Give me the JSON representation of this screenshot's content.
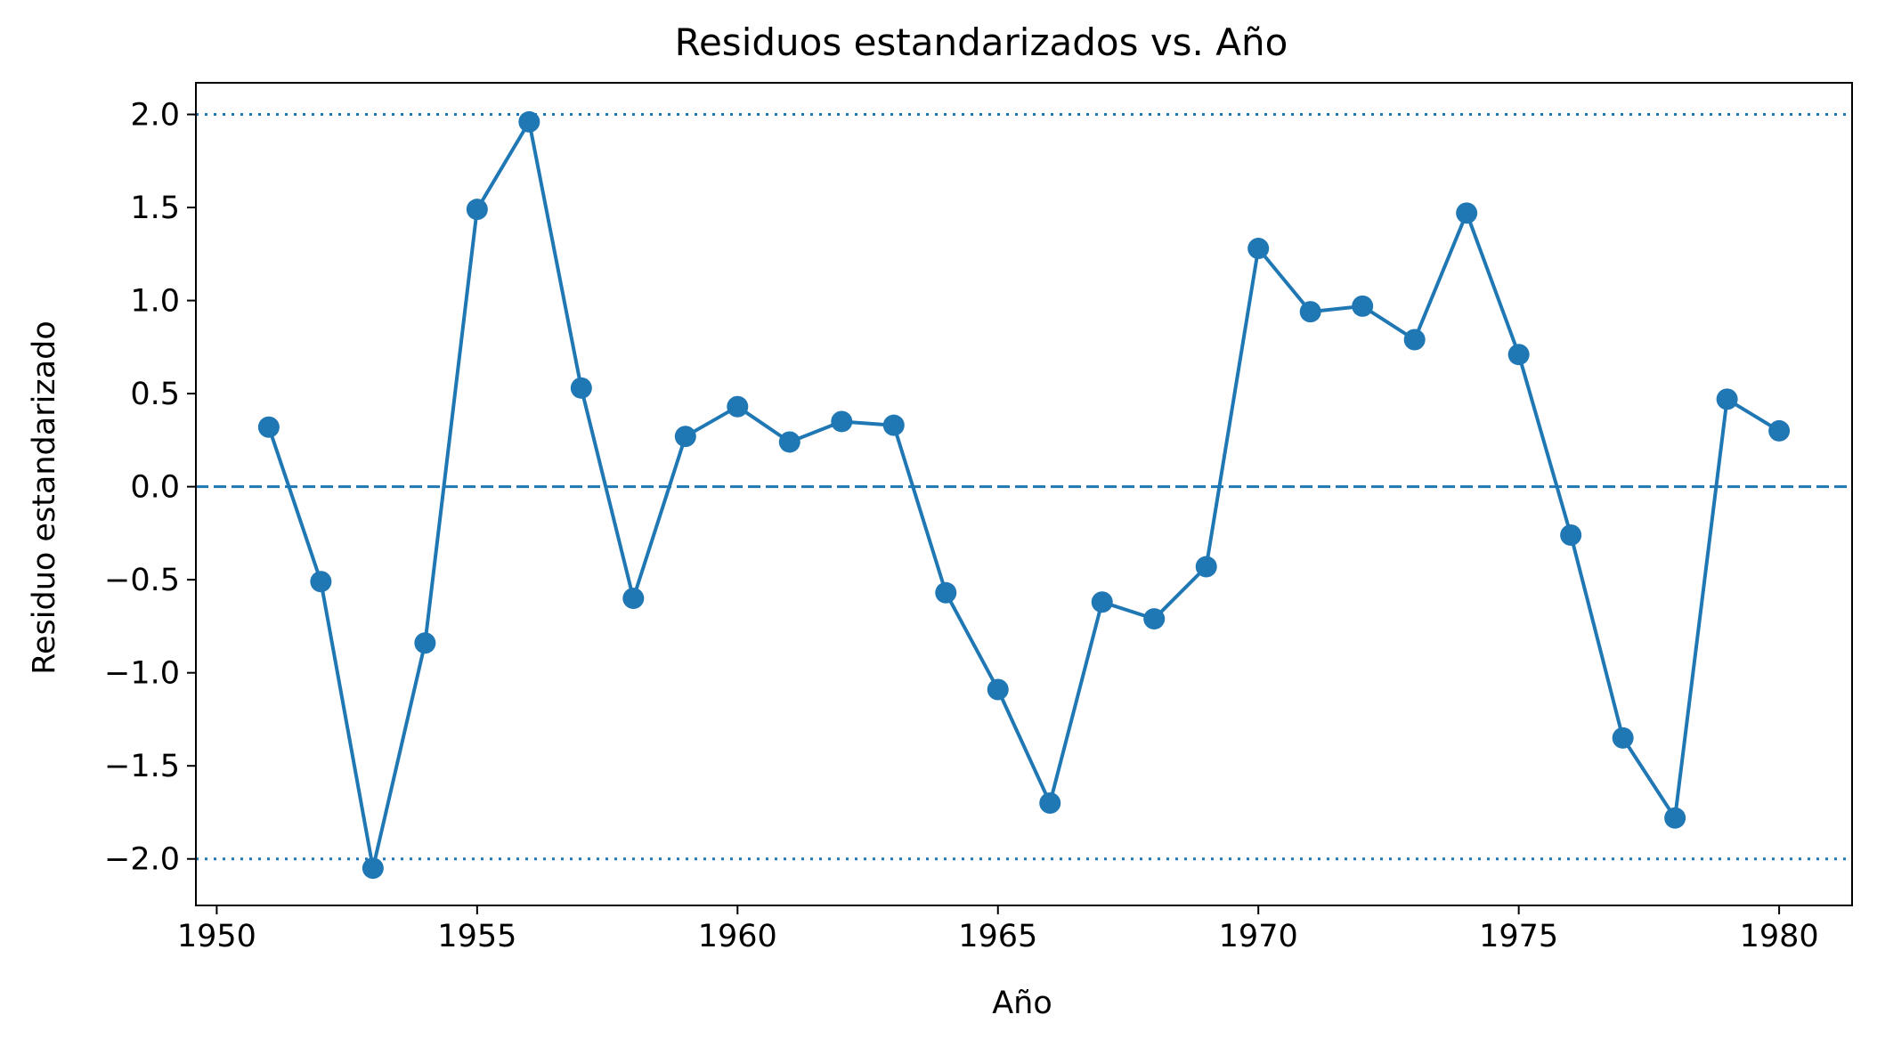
{
  "colors": {
    "series": "#1f77b4",
    "axis": "#000000",
    "background": "#ffffff"
  },
  "chart_data": {
    "type": "line",
    "title": "Residuos estandarizados vs. Año",
    "xlabel": "Año",
    "ylabel": "Residuo estandarizado",
    "xlim": [
      1949.6,
      1981.4
    ],
    "ylim": [
      -2.25,
      2.17
    ],
    "xticks": [
      1950,
      1955,
      1960,
      1965,
      1970,
      1975,
      1980
    ],
    "xtick_labels": [
      "1950",
      "1955",
      "1960",
      "1965",
      "1970",
      "1975",
      "1980"
    ],
    "yticks": [
      2.0,
      1.5,
      1.0,
      0.5,
      0.0,
      -0.5,
      -1.0,
      -1.5,
      -2.0
    ],
    "ytick_labels": [
      "2.0",
      "1.5",
      "1.0",
      "0.5",
      "0.0",
      "−0.5",
      "−1.0",
      "−1.5",
      "−2.0"
    ],
    "grid": false,
    "reference_lines": [
      {
        "y": 0.0,
        "style": "dashed"
      },
      {
        "y": 2.0,
        "style": "dotted"
      },
      {
        "y": -2.0,
        "style": "dotted"
      }
    ],
    "marker": "circle",
    "series": [
      {
        "x": [
          1951,
          1952,
          1953,
          1954,
          1955,
          1956,
          1957,
          1958,
          1959,
          1960,
          1961,
          1962,
          1963,
          1964,
          1965,
          1966,
          1967,
          1968,
          1969,
          1970,
          1971,
          1972,
          1973,
          1974,
          1975,
          1976,
          1977,
          1978,
          1979,
          1980
        ],
        "values": [
          0.32,
          -0.51,
          -2.05,
          -0.84,
          1.49,
          1.96,
          0.53,
          -0.6,
          0.27,
          0.43,
          0.24,
          0.35,
          0.33,
          -0.57,
          -1.09,
          -1.7,
          -0.62,
          -0.71,
          -0.43,
          1.28,
          0.94,
          0.97,
          0.79,
          1.47,
          0.71,
          -0.26,
          -1.35,
          -1.78,
          0.47,
          0.3
        ]
      }
    ]
  }
}
